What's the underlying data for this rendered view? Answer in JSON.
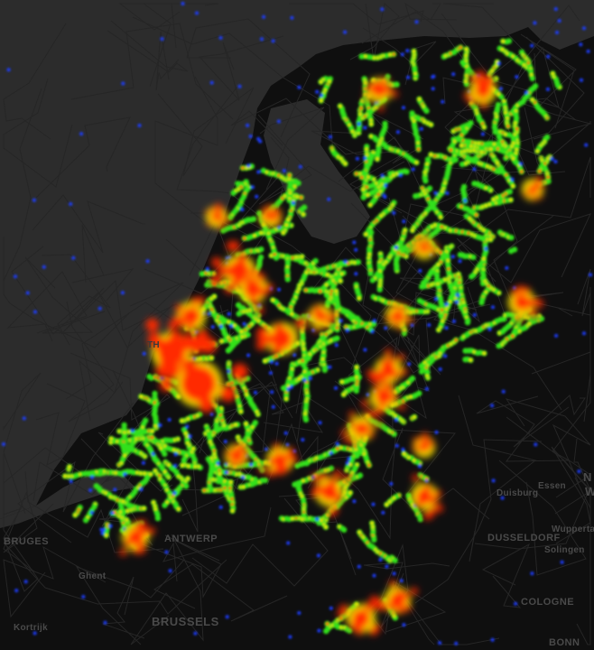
{
  "map": {
    "type": "heatmap",
    "colors": {
      "sea": "#2c2c2c",
      "land": "#0f0f0f",
      "low": "#1f3cff",
      "mid": "#33e01a",
      "high_mid": "#f0e000",
      "high": "#ff2a00"
    },
    "labels": {
      "bruges": "BRUGES",
      "antwerp": "ANTWERP",
      "ghent": "Ghent",
      "kortrijk": "Kortrijk",
      "brussels": "BRUSSELS",
      "the_hague": "TH",
      "duisburg": "Duisburg",
      "essen": "Essen",
      "dusseldorf": "DUSSELDORF",
      "wuppertal": "Wuppertal",
      "solingen": "Solingen",
      "cologne": "COLOGNE",
      "bonn": "BONN",
      "region_partial_1": "N",
      "region_partial_2": "W"
    }
  }
}
